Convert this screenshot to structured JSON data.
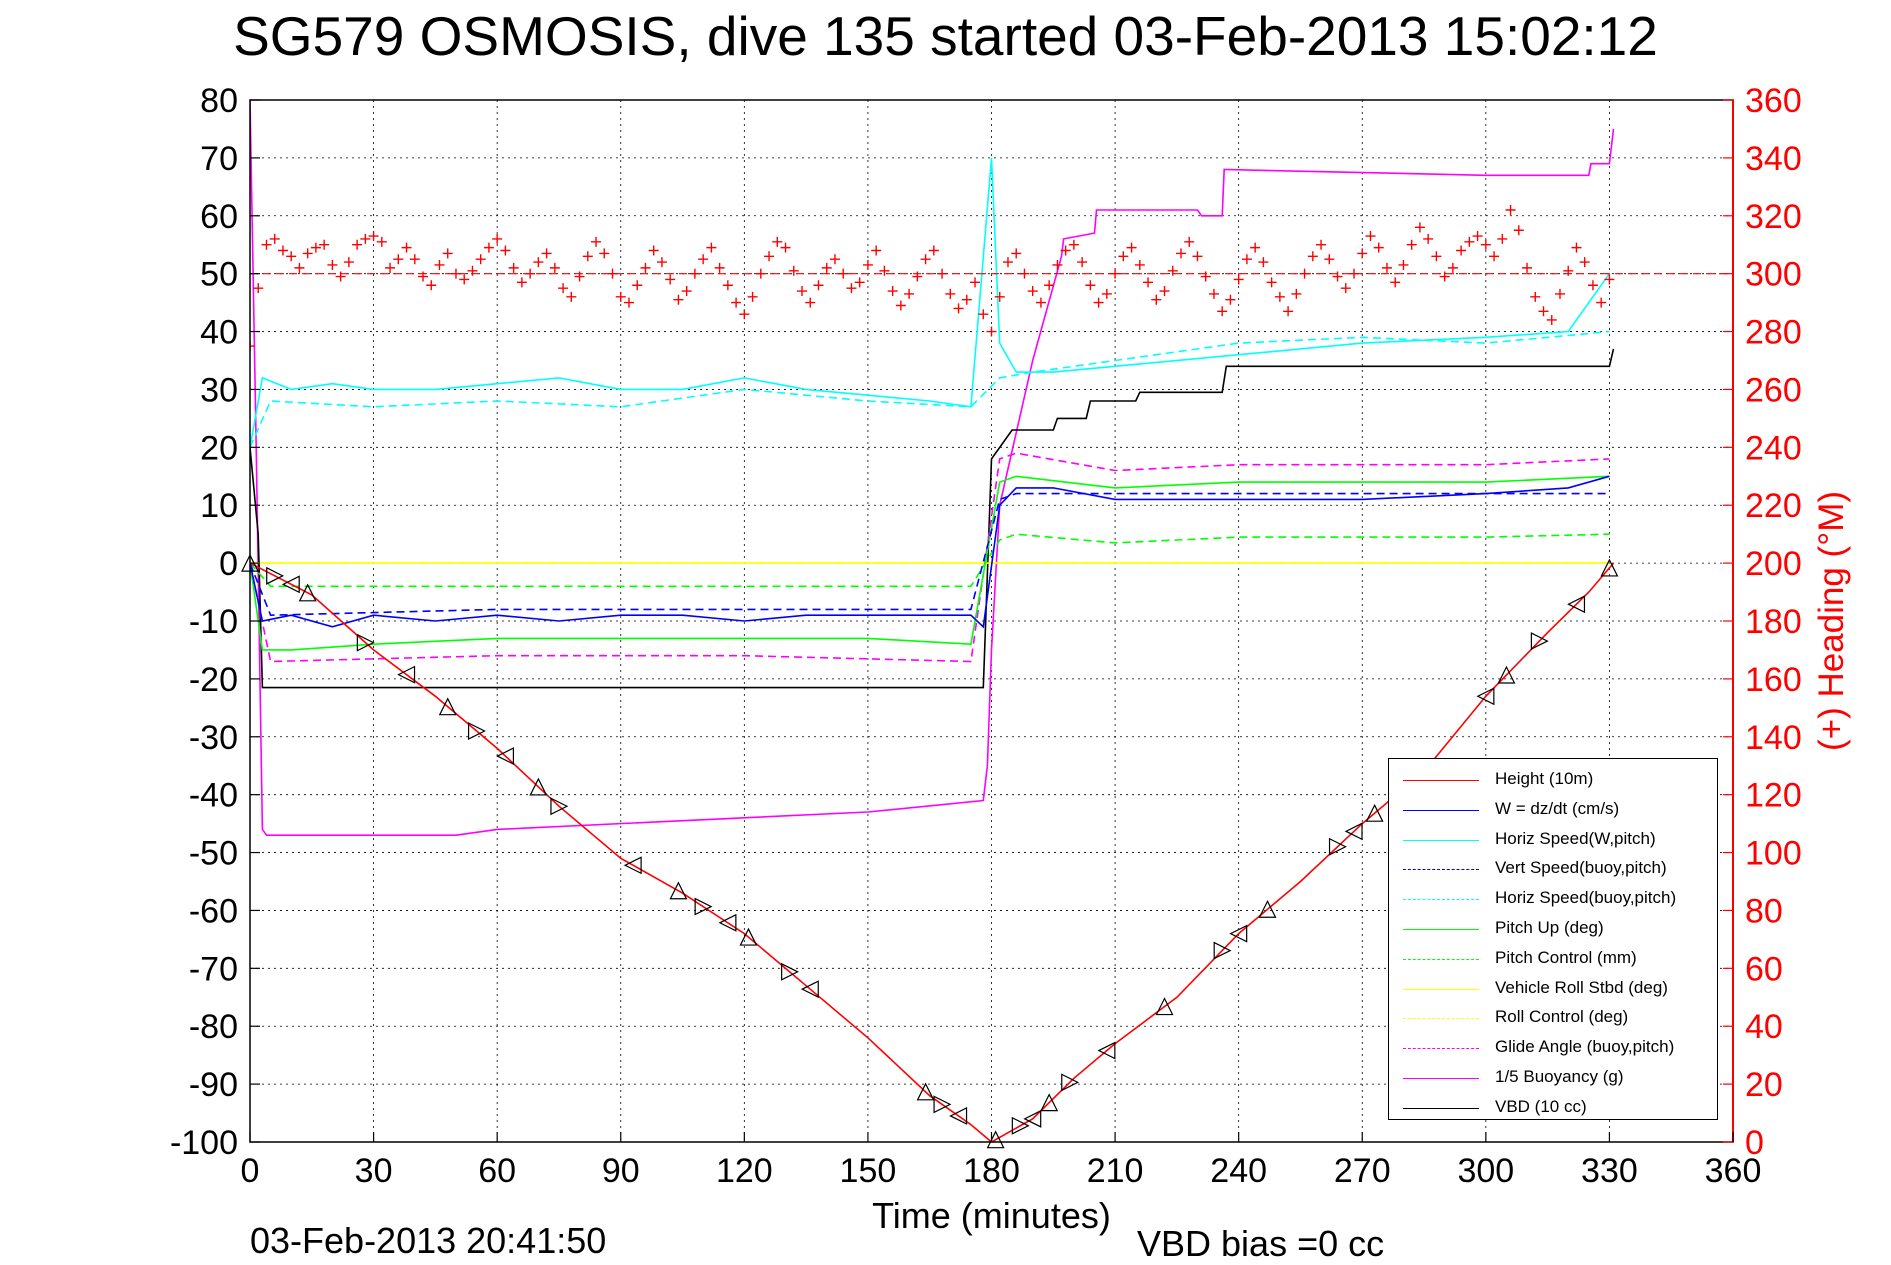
{
  "figure": {
    "title": "SG579 OSMOSIS, dive 135 started 03-Feb-2013 15:02:12",
    "footer_left": "03-Feb-2013 20:41:50",
    "footer_right": "VBD bias =0 cc"
  },
  "chart_data": {
    "type": "line",
    "title": "SG579 OSMOSIS, dive 135 started 03-Feb-2013 15:02:12",
    "xlabel": "Time (minutes)",
    "ylabel": "",
    "y2label": "(+) Heading (°M)",
    "xlim": [
      0,
      360
    ],
    "ylim": [
      -100,
      80
    ],
    "y2lim": [
      0,
      360
    ],
    "xticks": [
      "0",
      "30",
      "60",
      "90",
      "120",
      "150",
      "180",
      "210",
      "240",
      "270",
      "300",
      "330",
      "360"
    ],
    "yticks": [
      "80",
      "70",
      "60",
      "50",
      "40",
      "30",
      "20",
      "10",
      "0",
      "-10",
      "-20",
      "-30",
      "-40",
      "-50",
      "-60",
      "-70",
      "-80",
      "-90",
      "-100"
    ],
    "y2ticks": [
      "360",
      "340",
      "320",
      "300",
      "280",
      "260",
      "240",
      "220",
      "200",
      "180",
      "160",
      "140",
      "120",
      "100",
      "80",
      "60",
      "40",
      "20",
      "0"
    ],
    "grid": true,
    "legend_position": "bottom-right",
    "colors": {
      "height": "#ff0000",
      "w": "#0000ff",
      "horiz_speed": "#00ffff",
      "vert_speed_buoy": "#0000ff",
      "horiz_speed_buoy": "#00ffff",
      "pitch": "#00ff00",
      "pitch_control": "#00ff00",
      "roll": "#ffff00",
      "roll_control": "#ffff00",
      "glide_angle": "#ff00ff",
      "buoyancy": "#ff00ff",
      "vbd": "#000000",
      "heading": "#ff0000"
    },
    "legend": [
      {
        "label": "Height (10m)",
        "color": "#ff0000",
        "style": "solid"
      },
      {
        "label": "W = dz/dt (cm/s)",
        "color": "#0000ff",
        "style": "solid"
      },
      {
        "label": "Horiz Speed(W,pitch)",
        "color": "#00ffff",
        "style": "solid"
      },
      {
        "label": "Vert Speed(buoy,pitch)",
        "color": "#0000ff",
        "style": "dashed"
      },
      {
        "label": "Horiz Speed(buoy,pitch)",
        "color": "#00ffff",
        "style": "dashed"
      },
      {
        "label": "Pitch Up (deg)",
        "color": "#00ff00",
        "style": "solid"
      },
      {
        "label": "Pitch Control (mm)",
        "color": "#00ff00",
        "style": "dashed"
      },
      {
        "label": "Vehicle Roll Stbd (deg)",
        "color": "#ffff00",
        "style": "solid"
      },
      {
        "label": "Roll Control (deg)",
        "color": "#ffff00",
        "style": "dashed"
      },
      {
        "label": "Glide Angle (buoy,pitch)",
        "color": "#ff00ff",
        "style": "dashed"
      },
      {
        "label": "1/5 Buoyancy (g)",
        "color": "#ff00ff",
        "style": "solid"
      },
      {
        "label": "VBD (10 cc)",
        "color": "#000000",
        "style": "solid"
      }
    ],
    "series": [
      {
        "key": "height",
        "name": "Height (10m)",
        "x": [
          0,
          15,
          30,
          45,
          60,
          75,
          90,
          105,
          120,
          135,
          150,
          165,
          175,
          180,
          190,
          200,
          210,
          225,
          240,
          255,
          270,
          285,
          300,
          315,
          325,
          331
        ],
        "values": [
          0,
          -5.5,
          -15,
          -23,
          -32,
          -42,
          -51,
          -57,
          -64,
          -73,
          -82,
          -92,
          -97,
          -100,
          -96,
          -89,
          -83,
          -75,
          -64,
          -55,
          -45,
          -36,
          -23,
          -12,
          -5,
          0
        ]
      },
      {
        "key": "w",
        "name": "W = dz/dt (cm/s)",
        "x": [
          0,
          3,
          10,
          20,
          30,
          45,
          60,
          75,
          90,
          105,
          120,
          135,
          150,
          165,
          175,
          178,
          182,
          186,
          195,
          210,
          240,
          270,
          300,
          320,
          330
        ],
        "values": [
          0,
          -10,
          -9,
          -11,
          -9,
          -10,
          -9,
          -10,
          -9,
          -9,
          -10,
          -9,
          -9,
          -9,
          -9,
          -11,
          10,
          13,
          13,
          11,
          11,
          11,
          12,
          13,
          15
        ]
      },
      {
        "key": "horiz_speed",
        "name": "Horiz Speed(W,pitch)",
        "x": [
          0,
          3,
          10,
          20,
          30,
          45,
          60,
          75,
          90,
          105,
          120,
          135,
          150,
          165,
          175,
          180,
          182,
          186,
          195,
          210,
          240,
          270,
          300,
          320,
          330
        ],
        "values": [
          20,
          32,
          30,
          31,
          30,
          30,
          31,
          32,
          30,
          30,
          32,
          30,
          29,
          28,
          27,
          70,
          38,
          33,
          33,
          34,
          36,
          38,
          39,
          40,
          50
        ]
      },
      {
        "key": "vert_speed_buoy",
        "name": "Vert Speed(buoy,pitch)",
        "style": "dashed",
        "x": [
          0,
          5,
          60,
          120,
          175,
          182,
          186,
          210,
          240,
          270,
          300,
          330
        ],
        "values": [
          0,
          -9,
          -8,
          -8,
          -8,
          11,
          12,
          12,
          12,
          12,
          12,
          12
        ]
      },
      {
        "key": "horiz_speed_buoy",
        "name": "Horiz Speed(buoy,pitch)",
        "style": "dashed",
        "x": [
          0,
          5,
          30,
          60,
          90,
          120,
          150,
          175,
          182,
          190,
          210,
          240,
          270,
          300,
          330
        ],
        "values": [
          20,
          28,
          27,
          28,
          27,
          30,
          28,
          27,
          32,
          33,
          35,
          38,
          39,
          38,
          40
        ]
      },
      {
        "key": "pitch",
        "name": "Pitch Up (deg)",
        "x": [
          0,
          3,
          10,
          30,
          60,
          90,
          120,
          150,
          175,
          182,
          186,
          210,
          240,
          270,
          300,
          330
        ],
        "values": [
          0,
          -15,
          -15,
          -14,
          -13,
          -13,
          -13,
          -13,
          -14,
          14,
          15,
          13,
          14,
          14,
          14,
          15
        ]
      },
      {
        "key": "pitch_control",
        "name": "Pitch Control (mm)",
        "style": "dashed",
        "x": [
          0,
          5,
          60,
          120,
          175,
          182,
          186,
          210,
          240,
          270,
          300,
          330
        ],
        "values": [
          0,
          -4,
          -4,
          -4,
          -4,
          4,
          5,
          3.5,
          4.5,
          4.5,
          4.5,
          5
        ]
      },
      {
        "key": "roll",
        "name": "Vehicle Roll Stbd (deg)",
        "x": [
          0,
          10,
          30,
          60,
          90,
          120,
          150,
          175,
          182,
          190,
          210,
          240,
          270,
          300,
          330
        ],
        "values": [
          0,
          0,
          0,
          0,
          0,
          0,
          0,
          0,
          0,
          0,
          0,
          0,
          0,
          0,
          0
        ]
      },
      {
        "key": "roll_control",
        "name": "Roll Control (deg)",
        "style": "dashed",
        "x": [
          0,
          330
        ],
        "values": [
          0,
          0
        ]
      },
      {
        "key": "glide_angle",
        "name": "Glide Angle (buoy,pitch)",
        "style": "dashed",
        "x": [
          0,
          5,
          60,
          120,
          175,
          182,
          186,
          210,
          240,
          270,
          300,
          330
        ],
        "values": [
          0,
          -17,
          -16,
          -16,
          -17,
          18,
          19,
          16,
          17,
          17,
          17,
          18
        ]
      },
      {
        "key": "buoyancy",
        "name": "1/5 Buoyancy (g)",
        "x": [
          0,
          1.5,
          3,
          4,
          50,
          60,
          120,
          150,
          178,
          179,
          180,
          182,
          190,
          197,
          197.5,
          205,
          205.5,
          230,
          231,
          236,
          236.5,
          300,
          325,
          325.5,
          330,
          331
        ],
        "values": [
          80,
          20,
          -46,
          -47,
          -47,
          -46,
          -44,
          -43,
          -41,
          -35,
          -15,
          10,
          35,
          53,
          56,
          57,
          61,
          61,
          60,
          60,
          68,
          67,
          67,
          69,
          69,
          75
        ]
      },
      {
        "key": "vbd",
        "name": "VBD (10 cc)",
        "x": [
          0,
          2,
          3,
          10,
          60,
          120,
          178,
          180,
          185,
          195,
          196,
          203,
          204,
          215,
          216,
          236,
          237,
          290,
          330,
          331
        ],
        "values": [
          20,
          5,
          -21.5,
          -21.5,
          -21.5,
          -21.5,
          -21.5,
          18,
          23,
          23,
          25,
          25,
          28,
          28,
          29.5,
          29.5,
          34,
          34,
          34,
          37
        ]
      },
      {
        "key": "heading",
        "name": "(+) Heading (°M)",
        "axis": "right",
        "marker": "+",
        "x": [
          0,
          2,
          4,
          6,
          8,
          10,
          12,
          14,
          16,
          18,
          20,
          22,
          24,
          26,
          28,
          30,
          32,
          34,
          36,
          38,
          40,
          42,
          44,
          46,
          48,
          50,
          52,
          54,
          56,
          58,
          60,
          62,
          64,
          66,
          68,
          70,
          72,
          74,
          76,
          78,
          80,
          82,
          84,
          86,
          88,
          90,
          92,
          94,
          96,
          98,
          100,
          102,
          104,
          106,
          108,
          110,
          112,
          114,
          116,
          118,
          120,
          122,
          124,
          126,
          128,
          130,
          132,
          134,
          136,
          138,
          140,
          142,
          144,
          146,
          148,
          150,
          152,
          154,
          156,
          158,
          160,
          162,
          164,
          166,
          168,
          170,
          172,
          174,
          176,
          178,
          180,
          182,
          184,
          186,
          188,
          190,
          192,
          194,
          196,
          198,
          200,
          202,
          204,
          206,
          208,
          210,
          212,
          214,
          216,
          218,
          220,
          222,
          224,
          226,
          228,
          230,
          232,
          234,
          236,
          238,
          240,
          242,
          244,
          246,
          248,
          250,
          252,
          254,
          256,
          258,
          260,
          262,
          264,
          266,
          268,
          270,
          272,
          274,
          276,
          278,
          280,
          282,
          284,
          286,
          288,
          290,
          292,
          294,
          296,
          298,
          300,
          302,
          304,
          306,
          308,
          310,
          312,
          314,
          316,
          318,
          320,
          322,
          324,
          326,
          328,
          330
        ],
        "values": [
          275,
          295,
          310,
          312,
          308,
          306,
          302,
          307,
          309,
          310,
          303,
          299,
          304,
          310,
          312,
          313,
          311,
          302,
          305,
          309,
          305,
          299,
          296,
          303,
          307,
          300,
          298,
          301,
          305,
          309,
          312,
          308,
          302,
          297,
          300,
          304,
          307,
          302,
          295,
          292,
          299,
          306,
          311,
          307,
          300,
          292,
          290,
          296,
          302,
          308,
          304,
          298,
          291,
          294,
          300,
          305,
          309,
          302,
          296,
          290,
          286,
          292,
          300,
          306,
          311,
          309,
          301,
          294,
          290,
          296,
          302,
          305,
          300,
          295,
          297,
          303,
          308,
          301,
          294,
          289,
          293,
          299,
          305,
          308,
          300,
          293,
          288,
          291,
          297,
          286,
          280,
          292,
          304,
          307,
          300,
          294,
          290,
          296,
          303,
          308,
          310,
          304,
          296,
          290,
          293,
          300,
          306,
          309,
          303,
          297,
          291,
          294,
          301,
          307,
          311,
          306,
          299,
          293,
          287,
          291,
          298,
          305,
          309,
          304,
          297,
          292,
          287,
          293,
          300,
          306,
          310,
          305,
          299,
          295,
          300,
          307,
          313,
          309,
          302,
          297,
          303,
          310,
          316,
          312,
          306,
          299,
          302,
          308,
          311,
          313,
          310,
          306,
          312,
          322,
          315,
          302,
          292,
          287,
          284,
          293,
          301,
          309,
          304,
          296,
          290,
          298
        ]
      }
    ],
    "depth_markers": {
      "description": "triangle markers on the Height trace",
      "x": [
        0,
        6,
        10,
        14,
        28,
        38,
        48,
        55,
        62,
        70,
        75,
        93,
        104,
        110,
        116,
        121,
        131,
        136,
        164,
        168,
        172,
        181,
        187,
        190,
        194,
        199,
        208,
        222,
        236,
        240,
        247,
        264,
        268,
        273,
        284,
        300,
        305,
        313,
        322,
        330
      ]
    }
  }
}
